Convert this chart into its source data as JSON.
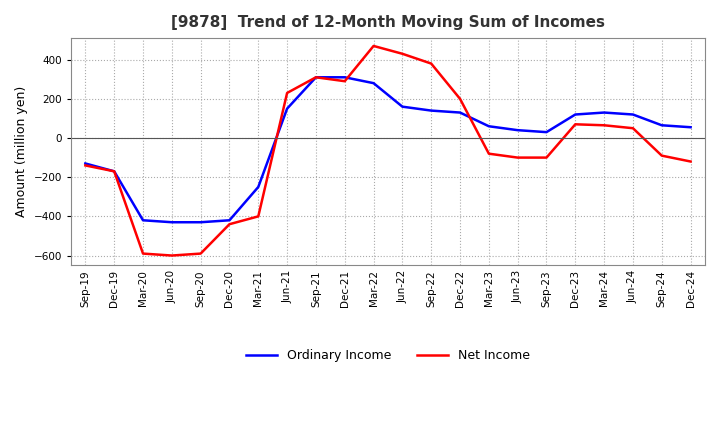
{
  "title": "[9878]  Trend of 12-Month Moving Sum of Incomes",
  "ylabel": "Amount (million yen)",
  "ylim": [
    -650,
    510
  ],
  "yticks": [
    -600,
    -400,
    -200,
    0,
    200,
    400
  ],
  "background_color": "#ffffff",
  "plot_background": "#ffffff",
  "grid_color": "#aaaaaa",
  "ordinary_income_color": "#0000ff",
  "net_income_color": "#ff0000",
  "legend_labels": [
    "Ordinary Income",
    "Net Income"
  ],
  "x_labels": [
    "Sep-19",
    "Dec-19",
    "Mar-20",
    "Jun-20",
    "Sep-20",
    "Dec-20",
    "Mar-21",
    "Jun-21",
    "Sep-21",
    "Dec-21",
    "Mar-22",
    "Jun-22",
    "Sep-22",
    "Dec-22",
    "Mar-23",
    "Jun-23",
    "Sep-23",
    "Dec-23",
    "Mar-24",
    "Jun-24",
    "Sep-24",
    "Dec-24"
  ],
  "ordinary_income": [
    -130,
    -170,
    -420,
    -430,
    -430,
    -420,
    -250,
    150,
    310,
    310,
    280,
    160,
    140,
    130,
    60,
    40,
    30,
    120,
    130,
    120,
    65,
    55
  ],
  "net_income": [
    -140,
    -170,
    -590,
    -600,
    -590,
    -440,
    -400,
    230,
    310,
    290,
    470,
    430,
    380,
    200,
    -80,
    -100,
    -100,
    70,
    65,
    50,
    -90,
    -120
  ]
}
